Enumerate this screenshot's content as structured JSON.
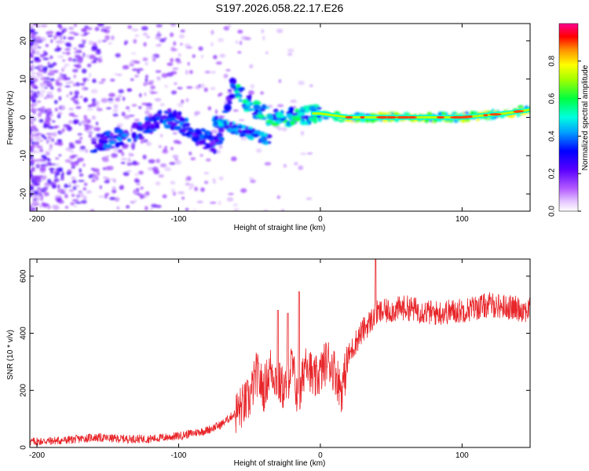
{
  "title": "S197.2026.058.22.17.E26",
  "chart_data": [
    {
      "type": "heatmap",
      "title": "S197.2026.058.22.17.E26",
      "xlabel": "Height of straight line (km)",
      "ylabel": "Frequency (Hz)",
      "xlim": [
        -205,
        148
      ],
      "ylim": [
        -24.5,
        24.5
      ],
      "xticks": [
        -200,
        -100,
        0,
        100
      ],
      "yticks": [
        -20,
        -10,
        0,
        10,
        20
      ],
      "grid": false,
      "colorbar": {
        "label": "Normalized spectral amplitude",
        "range": [
          0.0,
          1.0
        ],
        "ticks": [
          0.0,
          0.2,
          0.4,
          0.6,
          0.8
        ],
        "colormap": "rainbow (magenta-blue-cyan-green-yellow-red)"
      },
      "ridge": {
        "description": "frequency of peak spectral amplitude vs height",
        "x": [
          -160,
          -150,
          -140,
          -130,
          -120,
          -110,
          -100,
          -90,
          -80,
          -72,
          -62,
          -55,
          -45,
          -35,
          -25,
          -15,
          -5,
          0,
          20,
          60,
          100,
          130,
          148
        ],
        "y": [
          -7,
          -6,
          -5,
          -4,
          -2,
          0,
          -1,
          -4,
          -6,
          -7,
          8,
          5,
          2,
          0,
          0,
          0,
          1,
          1,
          0,
          0,
          0,
          1,
          2
        ]
      }
    },
    {
      "type": "line",
      "title": "",
      "xlabel": "Height of straight line (km)",
      "ylabel": "SNR (10 * v/v)",
      "xlim": [
        -205,
        148
      ],
      "ylim": [
        0,
        660
      ],
      "xticks": [
        -200,
        -100,
        0,
        100
      ],
      "yticks": [
        0,
        200,
        400,
        600
      ],
      "grid": false,
      "series": [
        {
          "name": "SNR",
          "color": "#e8262a",
          "x": [
            -205,
            -180,
            -160,
            -140,
            -120,
            -100,
            -80,
            -70,
            -60,
            -50,
            -45,
            -40,
            -35,
            -30,
            -25,
            -20,
            -15,
            -10,
            -5,
            0,
            5,
            10,
            15,
            20,
            25,
            30,
            40,
            50,
            60,
            80,
            100,
            120,
            148
          ],
          "y": [
            20,
            25,
            35,
            30,
            30,
            40,
            60,
            80,
            120,
            170,
            260,
            200,
            280,
            230,
            200,
            290,
            150,
            330,
            230,
            260,
            310,
            270,
            200,
            320,
            370,
            410,
            470,
            480,
            490,
            470,
            480,
            500,
            480
          ]
        }
      ],
      "annotations": {
        "peaks": [
          {
            "x": -30,
            "y": 480
          },
          {
            "x": -23,
            "y": 470
          },
          {
            "x": -15,
            "y": 545
          },
          {
            "x": 39,
            "y": 660
          }
        ]
      }
    }
  ]
}
